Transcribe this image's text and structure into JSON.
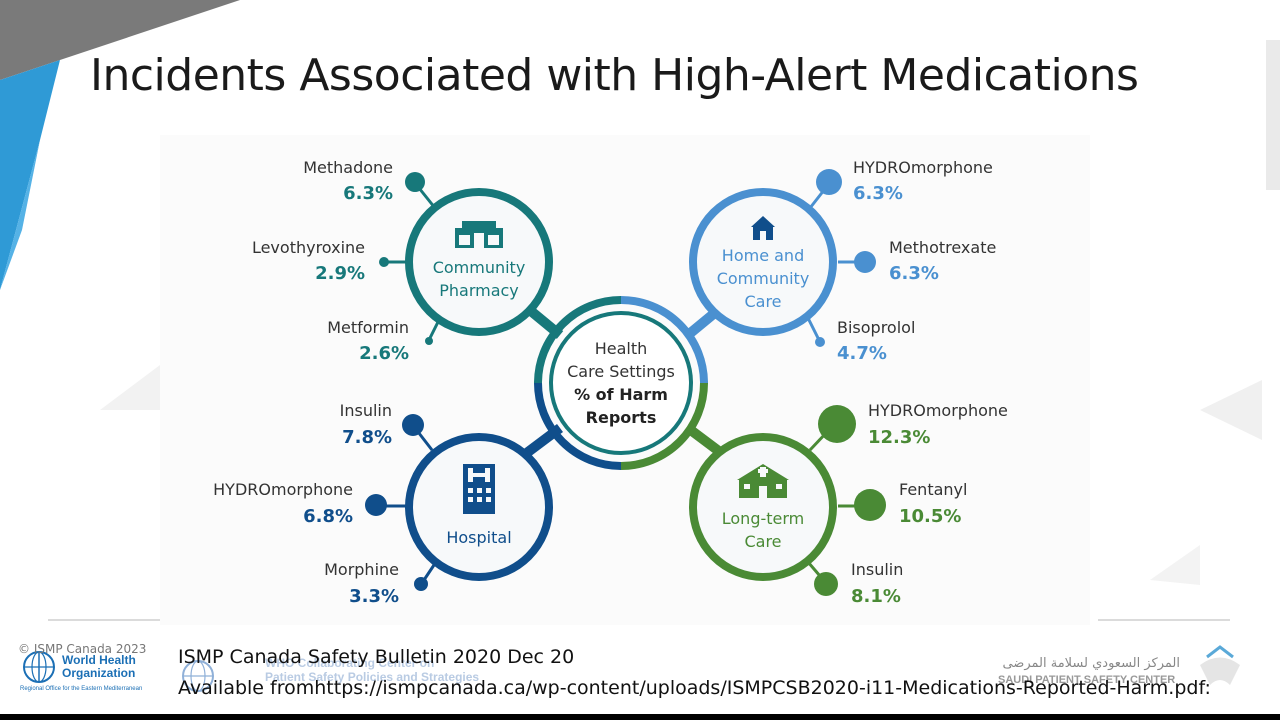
{
  "title": "Incidents Associated with High-Alert Medications",
  "center": {
    "line1": "Health",
    "line2": "Care Settings",
    "line3": "% of Harm",
    "line4": "Reports"
  },
  "colors": {
    "community_pharmacy": "#17787a",
    "home_community_care": "#4a90d0",
    "hospital": "#104e8b",
    "long_term_care": "#4a8a35"
  },
  "settings": {
    "community_pharmacy": {
      "label1": "Community",
      "label2": "Pharmacy",
      "icon": "pharmacy-icon",
      "meds": [
        {
          "name": "Methadone",
          "pct": "6.3%"
        },
        {
          "name": "Levothyroxine",
          "pct": "2.9%"
        },
        {
          "name": "Metformin",
          "pct": "2.6%"
        }
      ]
    },
    "home_community_care": {
      "label1": "Home and",
      "label2": "Community",
      "label3": "Care",
      "icon": "house-icon",
      "meds": [
        {
          "name": "HYDROmorphone",
          "pct": "6.3%"
        },
        {
          "name": "Methotrexate",
          "pct": "6.3%"
        },
        {
          "name": "Bisoprolol",
          "pct": "4.7%"
        }
      ]
    },
    "hospital": {
      "label1": "Hospital",
      "icon": "hospital-icon",
      "meds": [
        {
          "name": "Insulin",
          "pct": "7.8%"
        },
        {
          "name": "HYDROmorphone",
          "pct": "6.8%"
        },
        {
          "name": "Morphine",
          "pct": "3.3%"
        }
      ]
    },
    "long_term_care": {
      "label1": "Long-term",
      "label2": "Care",
      "icon": "care-home-icon",
      "meds": [
        {
          "name": "HYDROmorphone",
          "pct": "12.3%"
        },
        {
          "name": "Fentanyl",
          "pct": "10.5%"
        },
        {
          "name": "Insulin",
          "pct": "8.1%"
        }
      ]
    }
  },
  "footer": {
    "copyright": "© ISMP Canada 2023",
    "source_line1": "ISMP Canada Safety Bulletin 2020 Dec 20",
    "source_line2": "Available fromhttps://ismpcanada.ca/wp-content/uploads/ISMPCSB2020-i11-Medications-Reported-Harm.pdf:",
    "who_name1": "World Health",
    "who_name2": "Organization",
    "who_sub": "Regional Office for the Eastern Mediterranean",
    "collab1": "WHO Collaborating Center on",
    "collab2": "Patient Safety Policies and Strategies",
    "spsc_arabic": "المركز السعودي لسلامة المرضى",
    "spsc_english": "SAUDI PATIENT SAFETY CENTER"
  }
}
